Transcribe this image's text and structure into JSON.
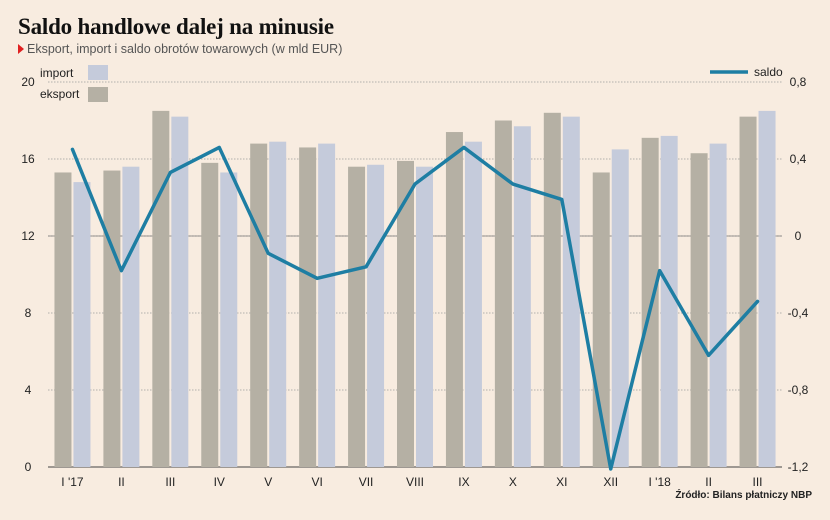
{
  "header": {
    "title": "Saldo handlowe dalej na minusie",
    "subtitle": "Eksport, import i saldo obrotów towarowych (w mld EUR)"
  },
  "source": "Źródło: Bilans płatniczy NBP",
  "colors": {
    "background": "#f8ece0",
    "eksport": "#b5b0a4",
    "import": "#c5cbdb",
    "saldo": "#1e7ea3",
    "marker": "#e02020"
  },
  "chart_data": {
    "type": "bar",
    "categories": [
      "I '17",
      "II",
      "III",
      "IV",
      "V",
      "VI",
      "VII",
      "VIII",
      "IX",
      "X",
      "XI",
      "XII",
      "I '18",
      "II",
      "III"
    ],
    "series": [
      {
        "name": "eksport",
        "values": [
          15.3,
          15.4,
          18.5,
          15.8,
          16.8,
          16.6,
          15.6,
          15.9,
          17.4,
          18.0,
          18.4,
          15.3,
          17.1,
          16.3,
          18.2
        ]
      },
      {
        "name": "import",
        "values": [
          14.8,
          15.6,
          18.2,
          15.3,
          16.9,
          16.8,
          15.7,
          15.6,
          16.9,
          17.7,
          18.2,
          16.5,
          17.2,
          16.8,
          18.5
        ]
      }
    ],
    "line_series": {
      "name": "saldo",
      "type": "line",
      "axis": "right",
      "values": [
        0.45,
        -0.18,
        0.33,
        0.46,
        -0.09,
        -0.22,
        -0.16,
        0.27,
        0.46,
        0.27,
        0.19,
        -1.21,
        -0.18,
        -0.62,
        -0.34
      ]
    },
    "left_axis": {
      "ylim": [
        0,
        20
      ],
      "ticks": [
        "0",
        "4",
        "8",
        "12",
        "16",
        "20"
      ]
    },
    "right_axis": {
      "ylim": [
        -1.2,
        0.8
      ],
      "ticks": [
        "-1,2",
        "-0,8",
        "-0,4",
        "0",
        "0,4",
        "0,8"
      ]
    },
    "legend": {
      "items": [
        "import",
        "eksport",
        "saldo"
      ],
      "placement": "top"
    },
    "grid": true
  }
}
